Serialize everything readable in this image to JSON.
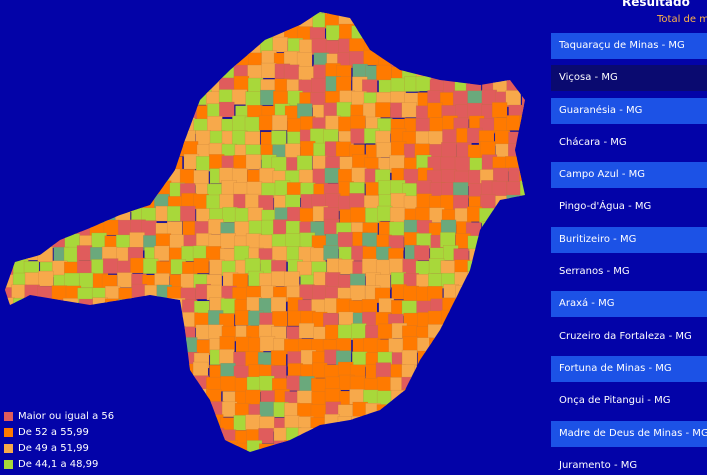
{
  "header": {
    "title": "Resultado",
    "subtitle": "Total de m"
  },
  "legend": [
    {
      "label": "Maior ou igual a 56",
      "color": "#e05c5c"
    },
    {
      "label": "De 52 a 55,99",
      "color": "#ff7a00"
    },
    {
      "label": "De 49 a 51,99",
      "color": "#f7a94b"
    },
    {
      "label": "De 44,1 a 48,99",
      "color": "#a8d83a"
    }
  ],
  "list": [
    "Taquaraçu de Minas - MG",
    "Viçosa - MG",
    "Guaranésia - MG",
    "Chácara - MG",
    "Campo Azul - MG",
    "Pingo-d'Água - MG",
    "Buritizeiro - MG",
    "Serranos - MG",
    "Araxá - MG",
    "Cruzeiro da Fortaleza - MG",
    "Fortuna de Minas - MG",
    "Onça de Pitangui - MG",
    "Madre de Deus de Minas - MG",
    "Juramento - MG"
  ]
}
